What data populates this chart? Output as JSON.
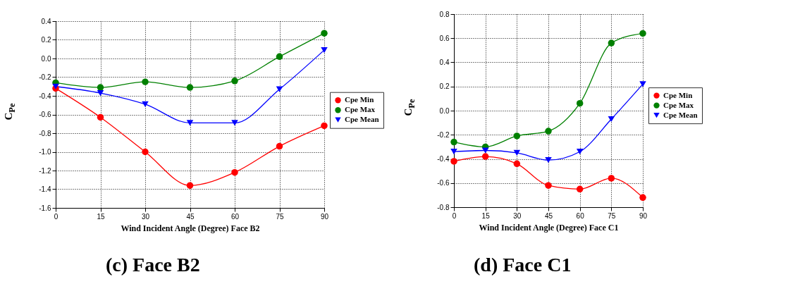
{
  "chart_data": [
    {
      "type": "line",
      "xlabel": "Wind Incident Angle (Degree) Face B2",
      "ylabel": "C$_{Pe}$",
      "annotations": [
        "(c) Face B2"
      ],
      "x": [
        0,
        15,
        30,
        45,
        60,
        75,
        90
      ],
      "xlim": [
        0,
        90
      ],
      "xticks": [
        0,
        15,
        30,
        45,
        60,
        75,
        90
      ],
      "ylim": [
        -1.6,
        0.4
      ],
      "yticks": [
        {
          "value": -1.6,
          "label": "-1.6"
        },
        {
          "value": -1.4,
          "label": "-1.4"
        },
        {
          "value": -1.2,
          "label": "-1.2"
        },
        {
          "value": -1,
          "label": "-1.0"
        },
        {
          "value": -0.8,
          "label": "-0.8"
        },
        {
          "value": -0.6,
          "label": "-0.6"
        },
        {
          "value": -0.4,
          "label": "-0.4"
        },
        {
          "value": -0.2,
          "label": "-0.2"
        },
        {
          "value": 0,
          "label": "0.0"
        },
        {
          "value": 0.2,
          "label": "0.2"
        },
        {
          "value": 0.4,
          "label": "0.4"
        }
      ],
      "grid": true,
      "legend": "right",
      "line_style": "solid",
      "series": [
        {
          "name": "Cpe Min",
          "color": "#ff0000",
          "marker": "circle",
          "values": [
            -0.32,
            -0.63,
            -1.0,
            -1.36,
            -1.22,
            -0.94,
            -0.72
          ]
        },
        {
          "name": "Cpe Max",
          "color": "#008000",
          "marker": "circle",
          "values": [
            -0.26,
            -0.31,
            -0.25,
            -0.31,
            -0.24,
            0.02,
            0.27
          ]
        },
        {
          "name": "Cpe Mean",
          "color": "#0000ff",
          "marker": "triangle",
          "values": [
            -0.3,
            -0.37,
            -0.49,
            -0.69,
            -0.69,
            -0.33,
            0.09
          ]
        }
      ]
    },
    {
      "type": "line",
      "xlabel": "Wind Incident Angle (Degree) Face C1",
      "ylabel": "C$_{Pe}$",
      "annotations": [
        "(d) Face C1"
      ],
      "x": [
        0,
        15,
        30,
        45,
        60,
        75,
        90
      ],
      "xlim": [
        0,
        90
      ],
      "xticks": [
        0,
        15,
        30,
        45,
        60,
        75,
        90
      ],
      "ylim": [
        -0.8,
        0.8
      ],
      "yticks": [
        {
          "value": -0.8,
          "label": "-0.8"
        },
        {
          "value": -0.6,
          "label": "-0.6"
        },
        {
          "value": -0.4,
          "label": "-0.4"
        },
        {
          "value": -0.2,
          "label": "-0.2"
        },
        {
          "value": 0,
          "label": "0.0"
        },
        {
          "value": 0.2,
          "label": "0.2"
        },
        {
          "value": 0.4,
          "label": "0.4"
        },
        {
          "value": 0.6,
          "label": "0.6"
        },
        {
          "value": 0.8,
          "label": "0.8"
        }
      ],
      "grid": true,
      "legend": "right",
      "line_style": "solid",
      "series": [
        {
          "name": "Cpe Min",
          "color": "#ff0000",
          "marker": "circle",
          "values": [
            -0.42,
            -0.38,
            -0.44,
            -0.62,
            -0.65,
            -0.56,
            -0.72
          ]
        },
        {
          "name": "Cpe Max",
          "color": "#008000",
          "marker": "circle",
          "values": [
            -0.26,
            -0.3,
            -0.21,
            -0.17,
            0.06,
            0.56,
            0.64
          ]
        },
        {
          "name": "Cpe Mean",
          "color": "#0000ff",
          "marker": "triangle",
          "values": [
            -0.34,
            -0.33,
            -0.35,
            -0.41,
            -0.34,
            -0.07,
            0.22
          ]
        }
      ]
    }
  ]
}
